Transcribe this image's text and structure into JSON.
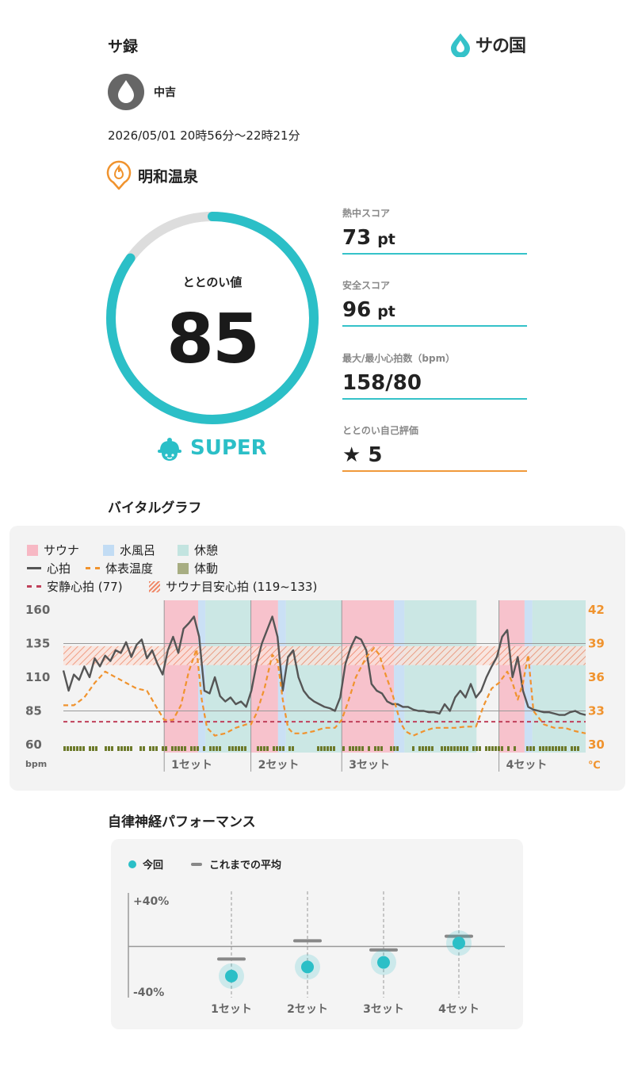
{
  "header": {
    "title": "サ録",
    "logo_text": "サの国"
  },
  "user": {
    "name": "中吉"
  },
  "session": {
    "datetime": "2026/05/01 20時56分〜22時21分",
    "facility": "明和温泉"
  },
  "totonoi": {
    "label": "ととのい値",
    "value": "85",
    "value_fraction": 0.85,
    "rank": "SUPER"
  },
  "scores": [
    {
      "label": "熱中スコア",
      "value": "73",
      "unit": "pt"
    },
    {
      "label": "安全スコア",
      "value": "96",
      "unit": "pt"
    },
    {
      "label": "最大/最小心拍数（bpm）",
      "value": "158/80",
      "unit": ""
    },
    {
      "label": "ととのい自己評価",
      "value": "★ 5",
      "unit": ""
    }
  ],
  "vital": {
    "title": "バイタルグラフ",
    "legend": {
      "sauna": "サウナ",
      "water": "水風呂",
      "rest": "休憩",
      "hr": "心拍",
      "skin_temp": "体表温度",
      "motion": "体動",
      "resting_hr": "安静心拍 (77)",
      "target_hr": "サウナ目安心拍 (119~133)"
    },
    "y_left_ticks": [
      "160",
      "135",
      "110",
      "85",
      "60"
    ],
    "y_left_unit": "bpm",
    "y_right_ticks": [
      "42",
      "39",
      "36",
      "33",
      "30"
    ],
    "y_right_unit": "℃",
    "set_labels": [
      "1セット",
      "2セット",
      "3セット",
      "4セット"
    ],
    "colors": {
      "sauna": "#f7b8c4",
      "water": "#c2dcf4",
      "rest": "#c3e4e0",
      "hr": "#555555",
      "temp": "#f0932e",
      "resting": "#c0405a",
      "motion": "#6d7a2a"
    }
  },
  "chart_data": [
    {
      "type": "line",
      "title": "バイタルグラフ",
      "ylabel": "bpm",
      "y2label": "℃",
      "ylim": [
        60,
        160
      ],
      "y2lim": [
        30,
        42
      ],
      "xlim": [
        0,
        100
      ],
      "resting_hr": 77,
      "target_hr_band": [
        119,
        133
      ],
      "phases": [
        {
          "type": "sauna",
          "start": 19.3,
          "end": 25.8
        },
        {
          "type": "water",
          "start": 25.8,
          "end": 27.2
        },
        {
          "type": "rest",
          "start": 27.2,
          "end": 35.9
        },
        {
          "type": "sauna",
          "start": 35.9,
          "end": 41.1
        },
        {
          "type": "water",
          "start": 41.1,
          "end": 42.6
        },
        {
          "type": "rest",
          "start": 42.6,
          "end": 53.3
        },
        {
          "type": "sauna",
          "start": 53.3,
          "end": 63.3
        },
        {
          "type": "water",
          "start": 63.3,
          "end": 65.3
        },
        {
          "type": "rest",
          "start": 65.3,
          "end": 79.1
        },
        {
          "type": "sauna",
          "start": 83.4,
          "end": 88.3
        },
        {
          "type": "water",
          "start": 88.3,
          "end": 89.8
        },
        {
          "type": "rest",
          "start": 89.8,
          "end": 100
        }
      ],
      "set_start_x": [
        19.3,
        35.9,
        53.3,
        83.4
      ],
      "series": [
        {
          "name": "心拍",
          "axis": "left",
          "x": [
            0,
            1,
            2,
            3,
            4,
            5,
            6,
            7,
            8,
            9,
            10,
            11,
            12,
            13,
            14,
            15,
            16,
            17,
            18,
            19,
            20,
            21,
            22,
            23,
            24,
            25,
            26,
            27,
            28,
            29,
            30,
            31,
            32,
            33,
            34,
            35,
            36,
            37,
            38,
            39,
            40,
            41,
            42,
            43,
            44,
            45,
            46,
            47,
            48,
            49,
            50,
            51,
            52,
            53,
            54,
            55,
            56,
            57,
            58,
            59,
            60,
            61,
            62,
            63,
            64,
            65,
            66,
            67,
            68,
            69,
            70,
            71,
            72,
            73,
            74,
            75,
            76,
            77,
            78,
            79,
            80,
            81,
            82,
            83,
            84,
            85,
            86,
            87,
            88,
            89,
            90,
            91,
            92,
            93,
            94,
            95,
            96,
            97,
            98,
            99,
            100
          ],
          "y": [
            115,
            100,
            112,
            108,
            118,
            110,
            124,
            118,
            126,
            122,
            130,
            128,
            136,
            125,
            134,
            138,
            124,
            130,
            120,
            112,
            130,
            140,
            128,
            146,
            150,
            155,
            140,
            100,
            98,
            110,
            96,
            92,
            95,
            90,
            92,
            88,
            100,
            120,
            135,
            145,
            155,
            140,
            100,
            125,
            130,
            110,
            100,
            95,
            92,
            90,
            88,
            87,
            85,
            95,
            120,
            132,
            140,
            138,
            130,
            105,
            100,
            98,
            92,
            90,
            90,
            88,
            88,
            86,
            85,
            85,
            84,
            84,
            83,
            90,
            85,
            95,
            100,
            95,
            105,
            95,
            100,
            110,
            118,
            125,
            140,
            145,
            110,
            125,
            100,
            88,
            86,
            85,
            84,
            84,
            83,
            82,
            82,
            84,
            85,
            83,
            82
          ]
        },
        {
          "name": "体表温度",
          "axis": "right",
          "x": [
            0,
            2,
            4,
            6,
            8,
            10,
            12,
            14,
            16,
            18,
            19.3,
            21,
            22.5,
            24,
            25.5,
            26.5,
            27.5,
            29,
            31,
            33,
            35,
            35.9,
            37,
            38.5,
            40,
            41,
            42,
            43,
            44,
            46,
            48,
            50,
            52,
            53.3,
            54.5,
            56,
            58,
            59.5,
            60.5,
            61.5,
            63,
            64.5,
            65.5,
            67,
            69,
            71,
            73,
            75,
            77,
            79,
            80.5,
            82,
            83.4,
            85,
            86,
            87,
            88,
            89,
            90,
            92,
            94,
            96,
            98,
            100
          ],
          "y": [
            33.5,
            33.5,
            34.2,
            35.5,
            36.5,
            36.0,
            35.5,
            35.0,
            34.8,
            33.2,
            32.2,
            32.2,
            33.5,
            36.5,
            38.5,
            34.0,
            31.5,
            30.8,
            31.0,
            31.5,
            31.8,
            31.8,
            32.8,
            35.0,
            38.0,
            37.5,
            34.0,
            31.5,
            31.0,
            31.0,
            31.2,
            31.5,
            31.5,
            32.2,
            33.8,
            36.0,
            37.8,
            38.6,
            38.0,
            36.5,
            34.5,
            32.0,
            31.2,
            30.8,
            31.2,
            31.5,
            31.5,
            31.5,
            31.6,
            31.6,
            33.5,
            35.0,
            35.5,
            36.5,
            35.5,
            34.0,
            35.5,
            38.0,
            33.0,
            31.8,
            31.5,
            31.5,
            31.2,
            31.0
          ]
        }
      ]
    },
    {
      "type": "scatter",
      "title": "自律神経パフォーマンス",
      "legend": {
        "current": "今回",
        "average": "これまでの平均"
      },
      "y_ticks": [
        "+40%",
        "-40%"
      ],
      "ylim": [
        -40,
        40
      ],
      "categories": [
        "1セット",
        "2セット",
        "3セット",
        "4セット"
      ],
      "series": [
        {
          "name": "今回",
          "values": [
            -26,
            -18,
            -14,
            3
          ]
        },
        {
          "name": "これまでの平均",
          "values": [
            -11,
            5,
            -3,
            9
          ]
        }
      ]
    }
  ]
}
